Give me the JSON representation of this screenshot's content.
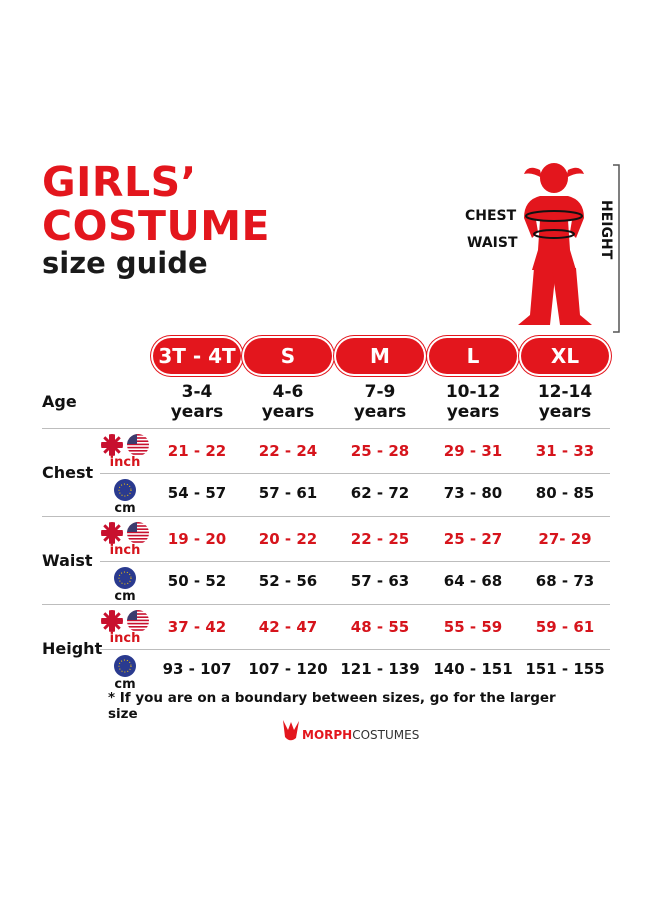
{
  "header": {
    "title_line1": "GIRLS’",
    "title_line2": "COSTUME",
    "subtitle": "size guide"
  },
  "figure": {
    "chest_label": "CHEST",
    "waist_label": "WAIST",
    "height_label": "HEIGHT"
  },
  "sizes": [
    "3T - 4T",
    "S",
    "M",
    "L",
    "XL"
  ],
  "age": {
    "label": "Age",
    "values": [
      "3-4 years",
      "4-6 years",
      "7-9 years",
      "10-12 years",
      "12-14 years"
    ],
    "line1": [
      "3-4",
      "4-6",
      "7-9",
      "10-12",
      "12-14"
    ],
    "line2": [
      "years",
      "years",
      "years",
      "years",
      "years"
    ]
  },
  "units": {
    "inch": "inch",
    "cm": "cm"
  },
  "rows": [
    {
      "label": "Chest",
      "inch": [
        "21 - 22",
        "22 - 24",
        "25 - 28",
        "29 - 31",
        "31 - 33"
      ],
      "cm": [
        "54 - 57",
        "57 - 61",
        "62 - 72",
        "73 - 80",
        "80 - 85"
      ]
    },
    {
      "label": "Waist",
      "inch": [
        "19 - 20",
        "20 - 22",
        "22 - 25",
        "25 - 27",
        "27- 29"
      ],
      "cm": [
        "50 - 52",
        "52 - 56",
        "57 - 63",
        "64 - 68",
        "68 - 73"
      ]
    },
    {
      "label": "Height",
      "inch": [
        "37 - 42",
        "42 - 47",
        "48 - 55",
        "55 - 59",
        "59 - 61"
      ],
      "cm": [
        "93 - 107",
        "107 - 120",
        "121 - 139",
        "140 - 151",
        "151 - 155"
      ]
    }
  ],
  "footnote": "* If you are on a boundary between sizes, go for the larger size",
  "logo": {
    "text_bold": "MORPH",
    "text_light": "COSTUMES"
  },
  "colors": {
    "accent": "#e3161d",
    "eu_blue": "#2a3a8f"
  }
}
